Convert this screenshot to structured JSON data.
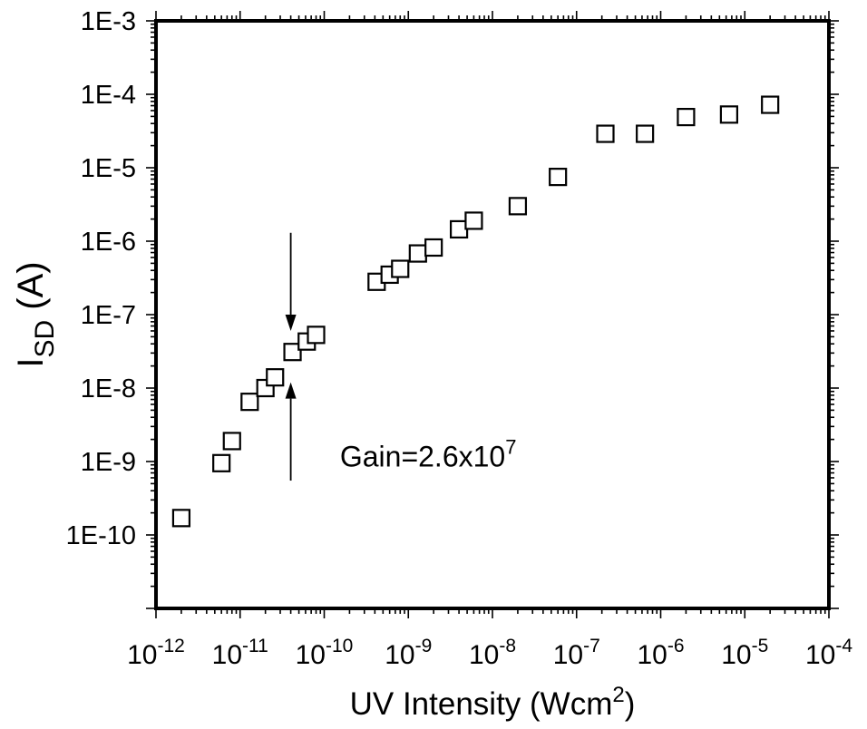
{
  "chart_data": {
    "type": "scatter",
    "title": "",
    "xlabel": "UV Intensity (Wcm",
    "xlabel_superscript": "2",
    "xlabel_close": ")",
    "ylabel_main": "I",
    "ylabel_subscript": "SD",
    "ylabel_unit": " (A)",
    "x_scale": "log",
    "y_scale": "log",
    "xlim": [
      1e-12,
      0.0001
    ],
    "ylim": [
      1e-11,
      0.001
    ],
    "grid": false,
    "legend": "none",
    "marker": "open-square",
    "x_ticks": [
      {
        "base": "10",
        "exp": "-12"
      },
      {
        "base": "10",
        "exp": "-11"
      },
      {
        "base": "10",
        "exp": "-10"
      },
      {
        "base": "10",
        "exp": "-9"
      },
      {
        "base": "10",
        "exp": "-8"
      },
      {
        "base": "10",
        "exp": "-7"
      },
      {
        "base": "10",
        "exp": "-6"
      },
      {
        "base": "10",
        "exp": "-5"
      },
      {
        "base": "10",
        "exp": "-4"
      }
    ],
    "y_ticks": [
      "1E-3",
      "1E-4",
      "1E-5",
      "1E-6",
      "1E-7",
      "1E-8",
      "1E-9",
      "1E-10"
    ],
    "series": [
      {
        "points": [
          [
            2e-12,
            1.7e-10
          ],
          [
            6e-12,
            9.5e-10
          ],
          [
            8e-12,
            1.9e-09
          ],
          [
            1.3e-11,
            6.5e-09
          ],
          [
            2e-11,
            1e-08
          ],
          [
            2.6e-11,
            1.4e-08
          ],
          [
            4.2e-11,
            3.1e-08
          ],
          [
            6.2e-11,
            4.3e-08
          ],
          [
            8e-11,
            5.3e-08
          ],
          [
            4.2e-10,
            2.8e-07
          ],
          [
            6e-10,
            3.5e-07
          ],
          [
            8e-10,
            4.2e-07
          ],
          [
            1.3e-09,
            6.8e-07
          ],
          [
            2e-09,
            8.2e-07
          ],
          [
            4e-09,
            1.45e-06
          ],
          [
            6e-09,
            1.9e-06
          ],
          [
            2e-08,
            3e-06
          ],
          [
            6e-08,
            7.5e-06
          ],
          [
            2.2e-07,
            2.9e-05
          ],
          [
            6.5e-07,
            2.9e-05
          ],
          [
            2e-06,
            4.9e-05
          ],
          [
            6.5e-06,
            5.3e-05
          ],
          [
            2e-05,
            7.2e-05
          ]
        ]
      }
    ],
    "annotations": [
      {
        "type": "arrow-down",
        "x": 4e-11,
        "y_from": 1.3e-06,
        "y_to": 6e-08
      },
      {
        "type": "arrow-up",
        "x": 4e-11,
        "y_from": 5.5e-10,
        "y_to": 1.2e-08
      }
    ],
    "annotation_text": {
      "label": "Gain=2.6x10",
      "superscript": "7",
      "x": 1.2e-10,
      "y": 1.2e-09
    }
  }
}
